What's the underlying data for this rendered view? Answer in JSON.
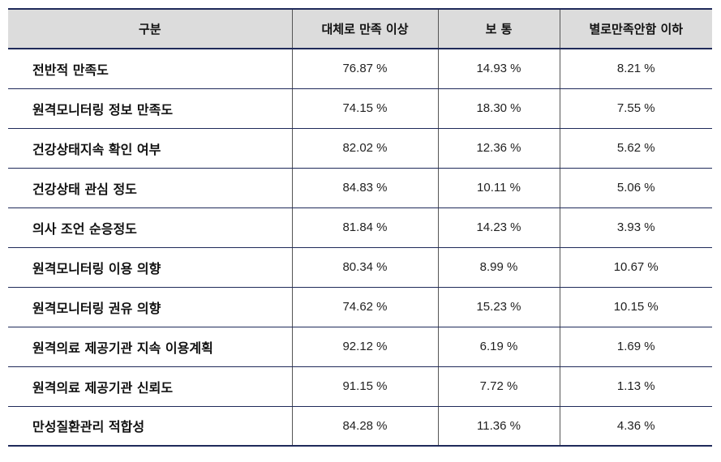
{
  "table": {
    "headers": [
      "구분",
      "대체로 만족 이상",
      "보 통",
      "별로만족안함 이하"
    ],
    "rows": [
      {
        "label": "전반적 만족도",
        "values": [
          "76.87 %",
          "14.93 %",
          "8.21 %"
        ]
      },
      {
        "label": "원격모니터링 정보 만족도",
        "values": [
          "74.15 %",
          "18.30 %",
          "7.55 %"
        ]
      },
      {
        "label": "건강상태지속 확인 여부",
        "values": [
          "82.02 %",
          "12.36 %",
          "5.62 %"
        ]
      },
      {
        "label": "건강상태 관심 정도",
        "values": [
          "84.83 %",
          "10.11 %",
          "5.06 %"
        ]
      },
      {
        "label": "의사 조언 순응정도",
        "values": [
          "81.84 %",
          "14.23 %",
          "3.93 %"
        ]
      },
      {
        "label": "원격모니터링 이용 의향",
        "values": [
          "80.34 %",
          "8.99 %",
          "10.67 %"
        ]
      },
      {
        "label": "원격모니터링 권유 의향",
        "values": [
          "74.62 %",
          "15.23 %",
          "10.15 %"
        ]
      },
      {
        "label": "원격의료 제공기관 지속 이용계획",
        "values": [
          "92.12 %",
          "6.19 %",
          "1.69 %"
        ]
      },
      {
        "label": "원격의료 제공기관 신뢰도",
        "values": [
          "91.15 %",
          "7.72 %",
          "1.13 %"
        ]
      },
      {
        "label": "만성질환관리 적합성",
        "values": [
          "84.28 %",
          "11.36 %",
          "4.36 %"
        ]
      }
    ]
  }
}
